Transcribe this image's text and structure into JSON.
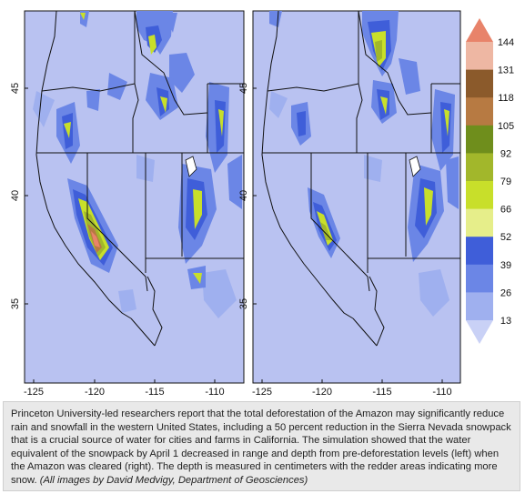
{
  "panels": [
    {
      "id": "left",
      "description_key": "pre-deforestation"
    },
    {
      "id": "right",
      "description_key": "post-deforestation"
    }
  ],
  "axes": {
    "x_ticks": [
      "-125",
      "-120",
      "-115",
      "-110"
    ],
    "y_ticks": [
      "45",
      "40",
      "35"
    ]
  },
  "colorbar": {
    "labels": [
      "144",
      "131",
      "118",
      "105",
      "92",
      "79",
      "66",
      "52",
      "39",
      "26",
      "13"
    ],
    "colors": [
      "#e8836a",
      "#eeb7a3",
      "#8b5a2b",
      "#b77a42",
      "#6f8e1c",
      "#a2b72b",
      "#c8df2a",
      "#e6ee8a",
      "#3f5ed9",
      "#6b86e6",
      "#9fb0ef",
      "#c9d1f6"
    ]
  },
  "colors": {
    "background": "#b9c2f1",
    "outline": "#111111"
  },
  "caption": {
    "text": "Princeton University-led researchers report that the total deforestation of the Amazon may significantly reduce rain and snowfall in the western United States, including a 50 percent reduction in the Sierra Nevada snowpack that is a crucial source of water for cities and farms in California. The simulation showed that the water equivalent of the snowpack by April 1 decreased in range and depth from pre-deforestation levels (left) when the Amazon was cleared (right). The depth is measured in centimeters with the redder areas indicating more snow.",
    "credit": "(All images by David Medvigy, Department of Geosciences)"
  }
}
